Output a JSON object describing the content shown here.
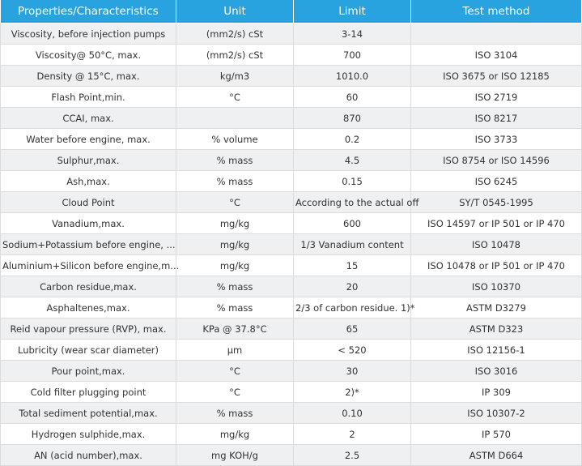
{
  "table": {
    "headers": [
      "Properties/Characteristics",
      "Unit",
      "Limit",
      "Test method"
    ],
    "rows": [
      [
        "Viscosity, before injection pumps",
        "(mm2/s) cSt",
        "3-14",
        ""
      ],
      [
        "Viscosity@ 50°C, max.",
        "(mm2/s) cSt",
        "700",
        "ISO 3104"
      ],
      [
        "Density @ 15°C, max.",
        "kg/m3",
        "1010.0",
        "ISO 3675 or ISO 12185"
      ],
      [
        "Flash Point,min.",
        "°C",
        "60",
        "ISO 2719"
      ],
      [
        "CCAI, max.",
        "",
        "870",
        "ISO 8217"
      ],
      [
        "Water before engine, max.",
        "% volume",
        "0.2",
        "ISO 3733"
      ],
      [
        "Sulphur,max.",
        "% mass",
        "4.5",
        "ISO 8754 or ISO 14596"
      ],
      [
        "Ash,max.",
        "% mass",
        "0.15",
        "ISO 6245"
      ],
      [
        "Cloud Point",
        "°C",
        "According to the actual off",
        "SY/T 0545-1995"
      ],
      [
        "Vanadium,max.",
        "mg/kg",
        "600",
        "ISO 14597 or IP 501 or IP 470"
      ],
      [
        "Sodium+Potassium before engine, ...",
        "mg/kg",
        "1/3 Vanadium content",
        "ISO 10478"
      ],
      [
        "Aluminium+Silicon before engine,m...",
        "mg/kg",
        "15",
        "ISO 10478 or IP 501 or IP 470"
      ],
      [
        "Carbon residue,max.",
        "% mass",
        "20",
        "ISO 10370"
      ],
      [
        "Asphaltenes,max.",
        "% mass",
        "2/3 of carbon residue. 1)*",
        "ASTM D3279"
      ],
      [
        "Reid vapour pressure (RVP), max.",
        "KPa @ 37.8°C",
        "65",
        "ASTM D323"
      ],
      [
        "Lubricity (wear scar diameter)",
        "µm",
        "< 520",
        "ISO 12156-1"
      ],
      [
        "Pour point,max.",
        "°C",
        "30",
        "ISO 3016"
      ],
      [
        "Cold filter plugging point",
        "°C",
        "2)*",
        "IP 309"
      ],
      [
        "Total sediment potential,max.",
        "% mass",
        "0.10",
        "ISO 10307-2"
      ],
      [
        "Hydrogen sulphide,max.",
        "mg/kg",
        "2",
        "IP 570"
      ],
      [
        "AN (acid number),max.",
        "mg KOH/g",
        "2.5",
        "ASTM D664"
      ]
    ]
  },
  "colors": {
    "header_bg": "#29a3e0",
    "header_text": "#ffffff",
    "row_alt_bg": "#eef0f2",
    "row_bg": "#ffffff",
    "cell_text": "#333333"
  }
}
